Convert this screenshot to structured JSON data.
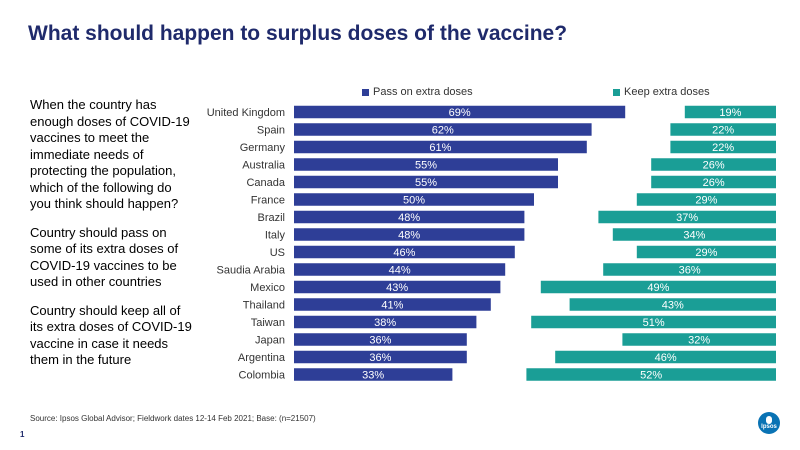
{
  "title": "What should happen to surplus doses of the vaccine?",
  "question": {
    "intro": "When the country has enough doses of COVID-19 vaccines to meet the immediate needs of protecting the population, which of the following do you think should happen?",
    "option_pass": "Country should pass on some of its extra doses of COVID-19 vaccines to be used in other countries",
    "option_keep": "Country should keep all of its extra doses of COVID-19 vaccine in case it needs them in the future"
  },
  "source": "Source: Ipsos Global Advisor; Fieldwork dates 12-14 Feb 2021; Base: (n=21507)",
  "page_number": "1",
  "logo_text": "Ipsos",
  "colors": {
    "pass": "#2e3e97",
    "keep": "#1a9e96",
    "title": "#1f2a6b"
  },
  "chart_data": {
    "type": "bar",
    "categories": [
      "United Kingdom",
      "Spain",
      "Germany",
      "Australia",
      "Canada",
      "France",
      "Brazil",
      "Italy",
      "US",
      "Saudia Arabia",
      "Mexico",
      "Thailand",
      "Taiwan",
      "Japan",
      "Argentina",
      "Colombia"
    ],
    "series": [
      {
        "name": "Pass on extra doses",
        "values": [
          69,
          62,
          61,
          55,
          55,
          50,
          48,
          48,
          46,
          44,
          43,
          41,
          38,
          36,
          36,
          33
        ]
      },
      {
        "name": "Keep extra doses",
        "values": [
          19,
          22,
          22,
          26,
          26,
          29,
          37,
          34,
          29,
          36,
          49,
          43,
          51,
          32,
          46,
          52
        ]
      }
    ],
    "legend_position": "top"
  }
}
